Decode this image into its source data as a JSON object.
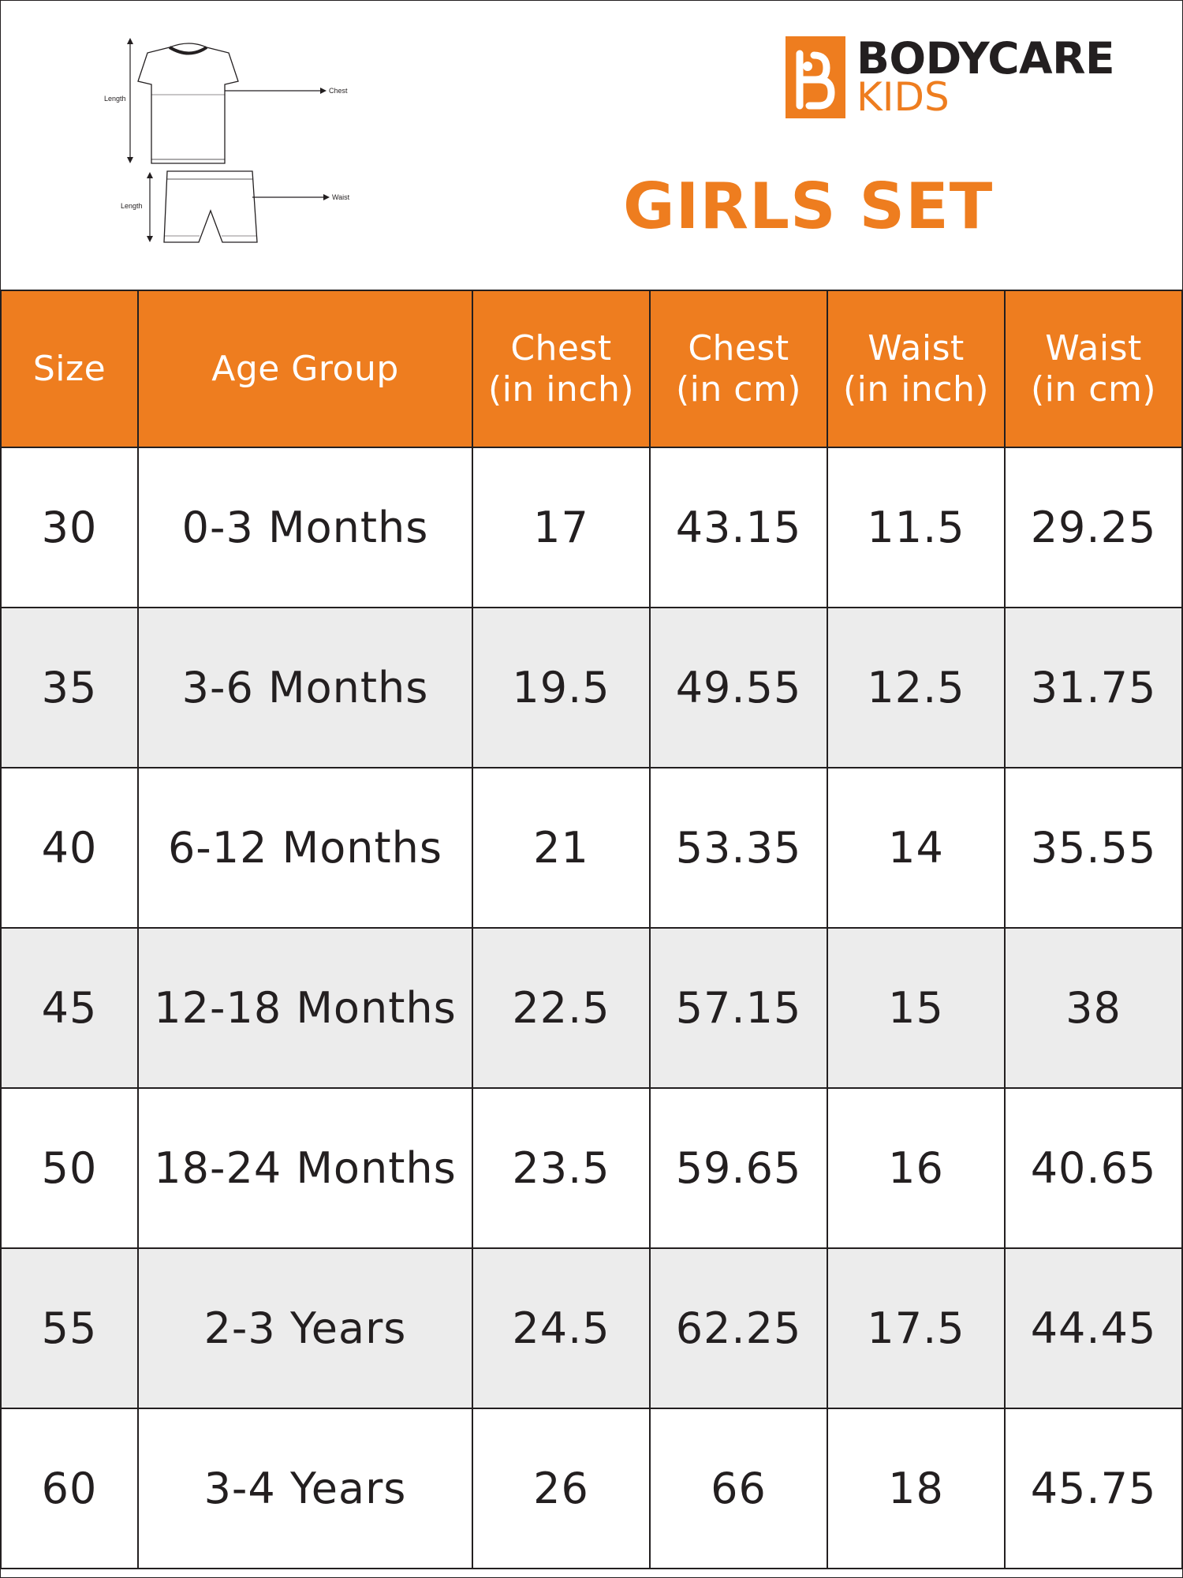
{
  "header": {
    "brand_line1": "BODYCARE",
    "brand_line2": "KIDS",
    "title": "GIRLS SET",
    "diagram_labels": {
      "top_length": "Length",
      "chest": "Chest",
      "bottom_length": "Length",
      "waist": "Waist"
    }
  },
  "colors": {
    "accent": "#ee7d1f",
    "text": "#231f20",
    "row_shade": "#ececec"
  },
  "table": {
    "headers": [
      {
        "line1": "Size",
        "line2": ""
      },
      {
        "line1": "Age Group",
        "line2": ""
      },
      {
        "line1": "Chest",
        "line2": "(in inch)"
      },
      {
        "line1": "Chest",
        "line2": "(in cm)"
      },
      {
        "line1": "Waist",
        "line2": "(in inch)"
      },
      {
        "line1": "Waist",
        "line2": "(in cm)"
      }
    ],
    "rows": [
      [
        "30",
        "0-3 Months",
        "17",
        "43.15",
        "11.5",
        "29.25"
      ],
      [
        "35",
        "3-6 Months",
        "19.5",
        "49.55",
        "12.5",
        "31.75"
      ],
      [
        "40",
        "6-12 Months",
        "21",
        "53.35",
        "14",
        "35.55"
      ],
      [
        "45",
        "12-18 Months",
        "22.5",
        "57.15",
        "15",
        "38"
      ],
      [
        "50",
        "18-24 Months",
        "23.5",
        "59.65",
        "16",
        "40.65"
      ],
      [
        "55",
        "2-3 Years",
        "24.5",
        "62.25",
        "17.5",
        "44.45"
      ],
      [
        "60",
        "3-4 Years",
        "26",
        "66",
        "18",
        "45.75"
      ]
    ]
  }
}
